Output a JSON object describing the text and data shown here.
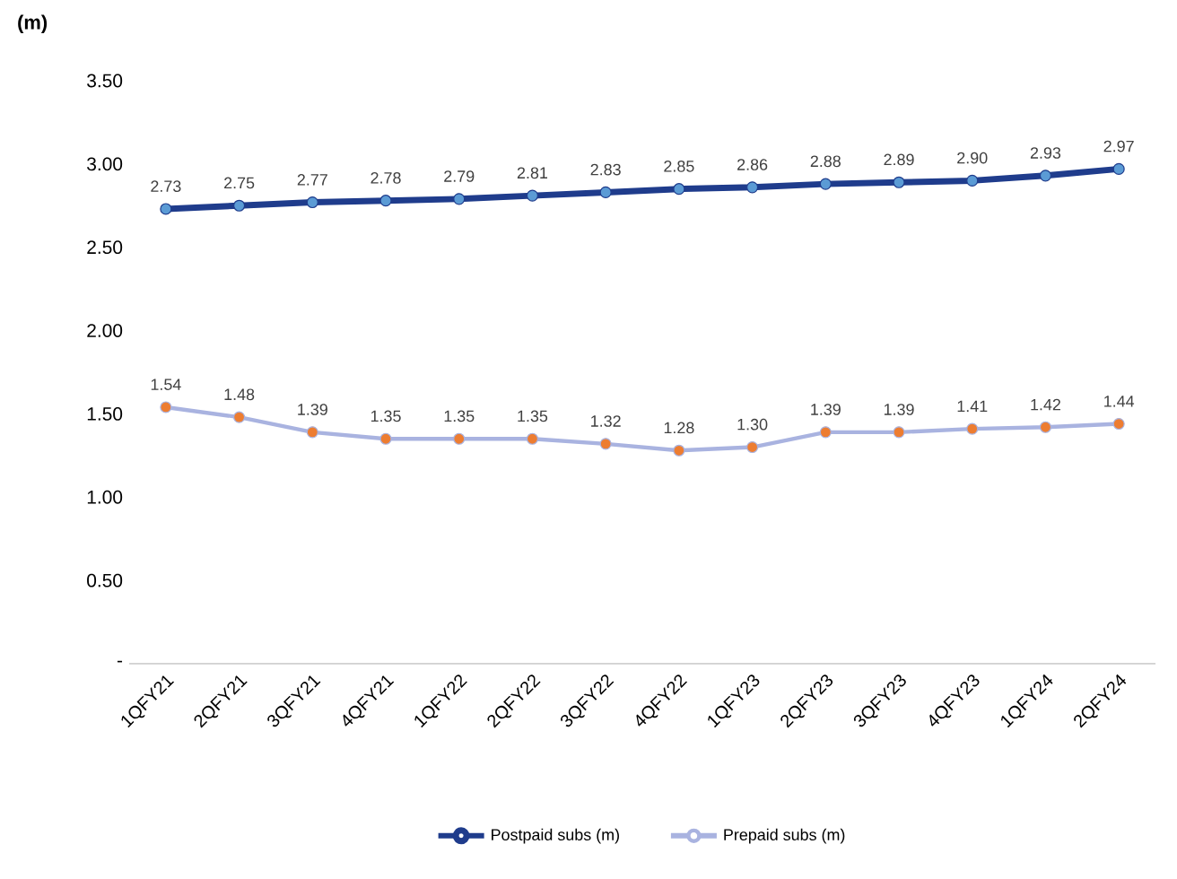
{
  "chart_data": {
    "type": "line",
    "ylabel": "(m)",
    "categories": [
      "1QFY21",
      "2QFY21",
      "3QFY21",
      "4QFY21",
      "1QFY22",
      "2QFY22",
      "3QFY22",
      "4QFY22",
      "1QFY23",
      "2QFY23",
      "3QFY23",
      "4QFY23",
      "1QFY24",
      "2QFY24"
    ],
    "series": [
      {
        "name": "Postpaid subs (m)",
        "color": "#1f3c8c",
        "colors": [
          "#5b9bd5",
          "#5b9bd5",
          "#5b9bd5",
          "#5b9bd5",
          "#5b9bd5",
          "#5b9bd5",
          "#5b9bd5",
          "#5b9bd5",
          "#5b9bd5",
          "#5b9bd5",
          "#5b9bd5",
          "#5b9bd5",
          "#5b9bd5",
          "#5b9bd5"
        ],
        "values": [
          2.73,
          2.75,
          2.77,
          2.78,
          2.79,
          2.81,
          2.83,
          2.85,
          2.86,
          2.88,
          2.89,
          2.9,
          2.93,
          2.97
        ],
        "value_labels": [
          "2.73",
          "2.75",
          "2.77",
          "2.78",
          "2.79",
          "2.81",
          "2.83",
          "2.85",
          "2.86",
          "2.88",
          "2.89",
          "2.90",
          "2.93",
          "2.97"
        ]
      },
      {
        "name": "Prepaid subs (m)",
        "color": "#a9b3e0",
        "colors": [
          "#ed7d31",
          "#ed7d31",
          "#ed7d31",
          "#ed7d31",
          "#ed7d31",
          "#ed7d31",
          "#ed7d31",
          "#ed7d31",
          "#ed7d31",
          "#ed7d31",
          "#ed7d31",
          "#ed7d31",
          "#ed7d31",
          "#ed7d31"
        ],
        "values": [
          1.54,
          1.48,
          1.39,
          1.35,
          1.35,
          1.35,
          1.32,
          1.28,
          1.3,
          1.39,
          1.39,
          1.41,
          1.42,
          1.44
        ],
        "value_labels": [
          "1.54",
          "1.48",
          "1.39",
          "1.35",
          "1.35",
          "1.35",
          "1.32",
          "1.28",
          "1.30",
          "1.39",
          "1.39",
          "1.41",
          "1.42",
          "1.44"
        ]
      }
    ],
    "ylim": [
      0,
      3.5
    ],
    "yticks": [
      {
        "value": 0,
        "label": "-"
      },
      {
        "value": 0.5,
        "label": "0.50"
      },
      {
        "value": 1.0,
        "label": "1.00"
      },
      {
        "value": 1.5,
        "label": "1.50"
      },
      {
        "value": 2.0,
        "label": "2.00"
      },
      {
        "value": 2.5,
        "label": "2.50"
      },
      {
        "value": 3.0,
        "label": "3.00"
      },
      {
        "value": 3.5,
        "label": "3.50"
      }
    ],
    "grid": false,
    "legend": "bottom",
    "marker": "circle",
    "line_style": "solid"
  }
}
